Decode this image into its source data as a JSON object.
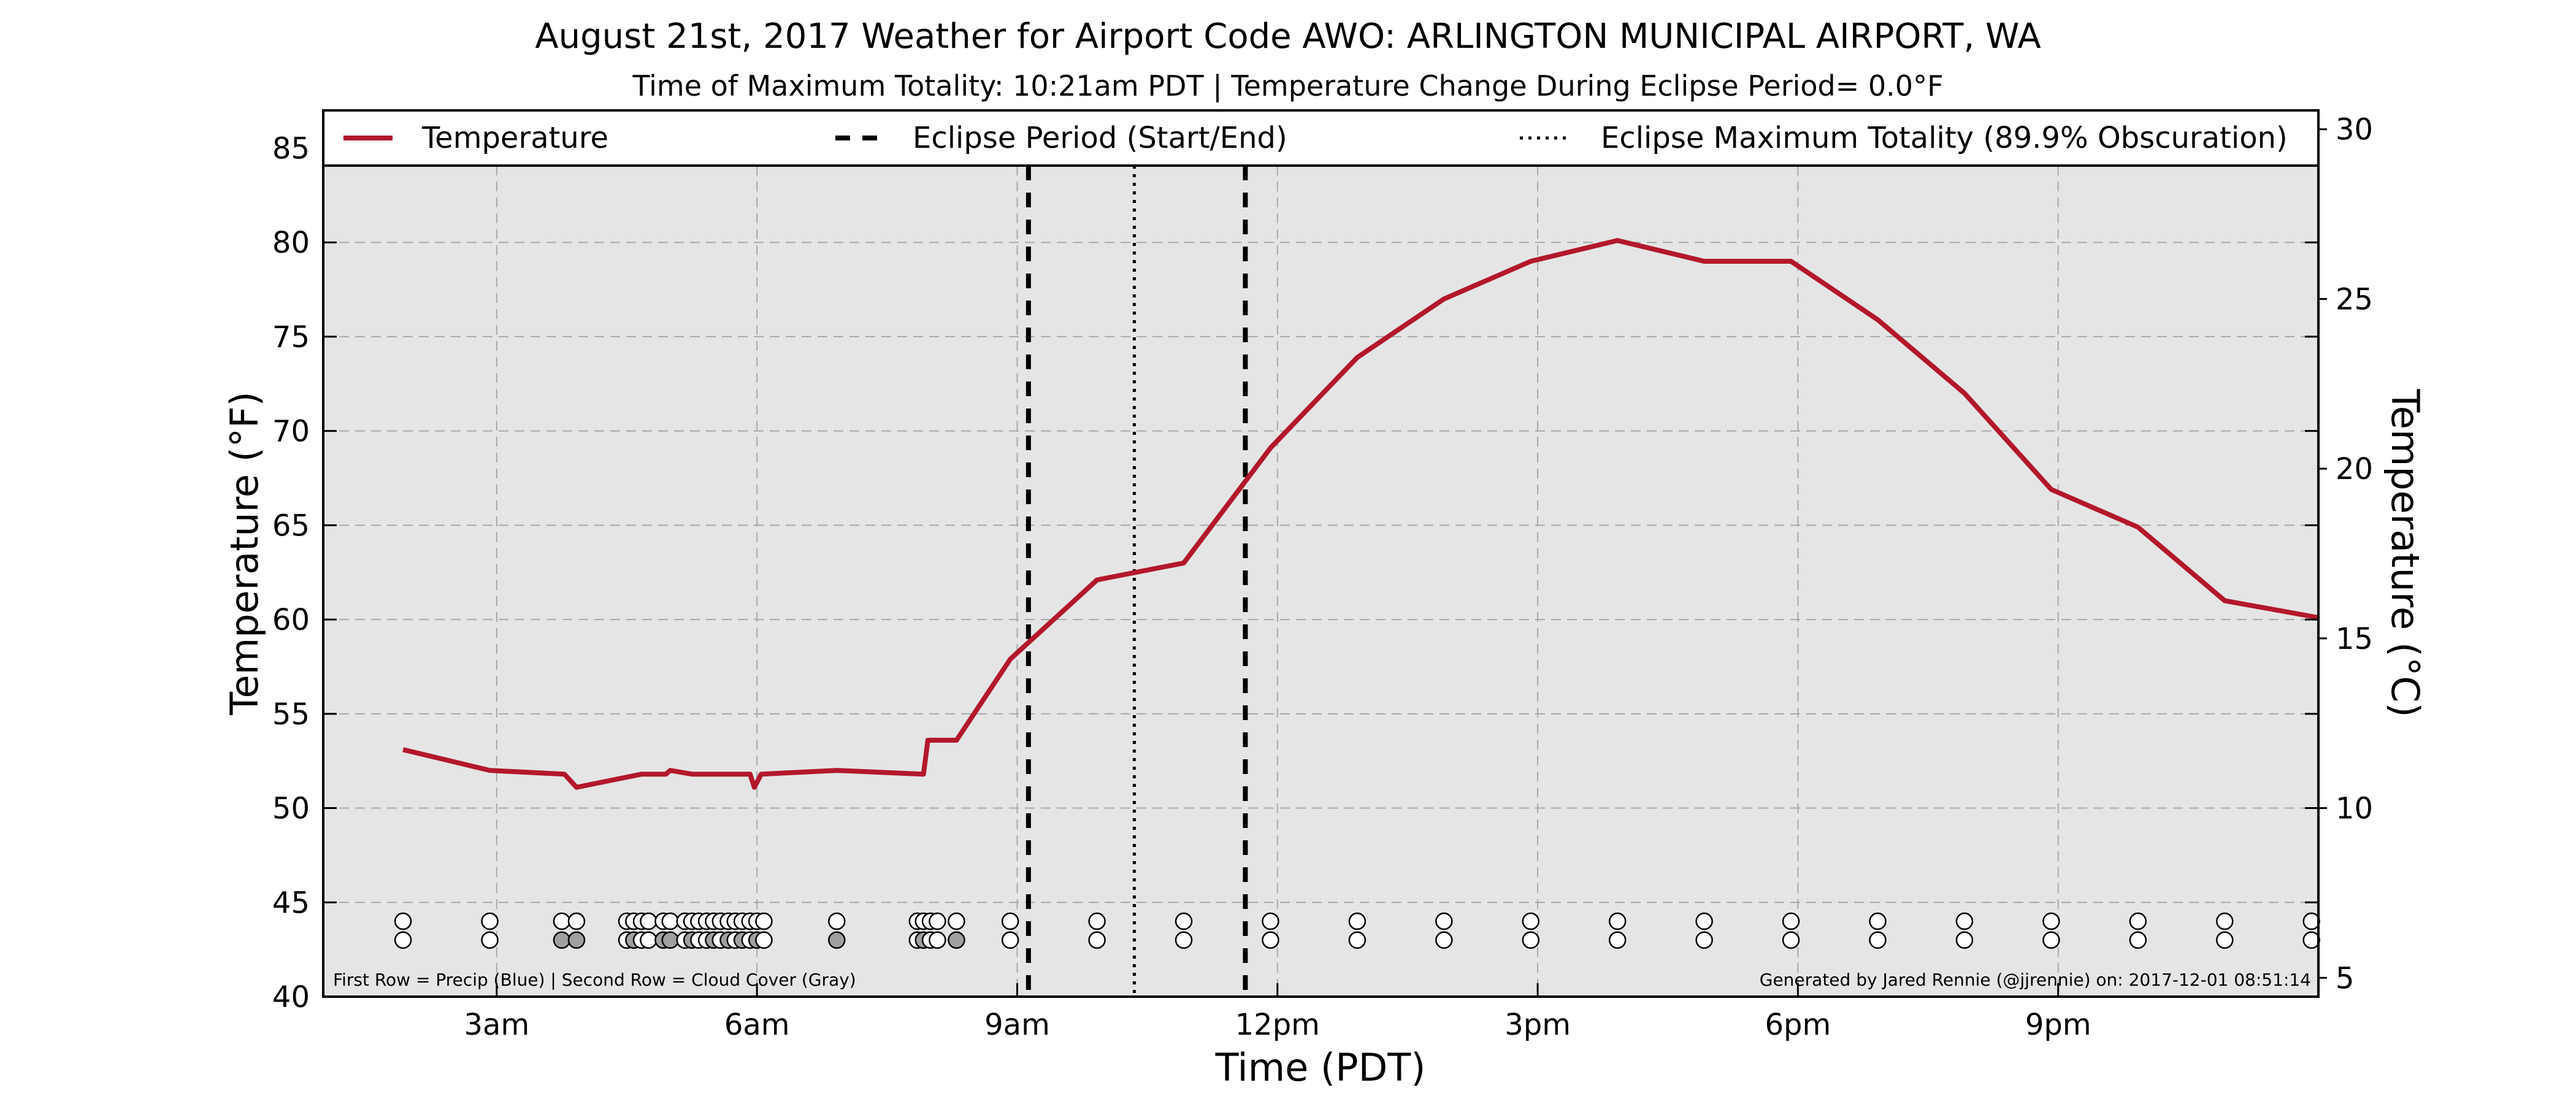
{
  "chart_data": {
    "type": "line",
    "title": "August 21st, 2017 Weather for Airport Code AWO: ARLINGTON MUNICIPAL AIRPORT, WA",
    "subtitle": "Time of Maximum Totality: 10:21am PDT | Temperature Change During Eclipse Period= 0.0°F",
    "xlabel": "Time (PDT)",
    "ylabel": "Temperature (°F)",
    "ylabel_right": "Temperature (°C)",
    "xlim": [
      1.0,
      24.0
    ],
    "ylim": [
      40,
      87
    ],
    "ylim_right_c": [
      4.444,
      30.556
    ],
    "x_ticks": [
      {
        "x": 3,
        "label": "3am"
      },
      {
        "x": 6,
        "label": "6am"
      },
      {
        "x": 9,
        "label": "9am"
      },
      {
        "x": 12,
        "label": "12pm"
      },
      {
        "x": 15,
        "label": "3pm"
      },
      {
        "x": 18,
        "label": "6pm"
      },
      {
        "x": 21,
        "label": "9pm"
      }
    ],
    "y_ticks": [
      40,
      45,
      50,
      55,
      60,
      65,
      70,
      75,
      80,
      85
    ],
    "y_ticks_right": [
      5,
      10,
      15,
      20,
      25,
      30
    ],
    "grid": true,
    "legend_placement": "top",
    "colors": {
      "temperature": "#b2182b",
      "eclipse": "#000000",
      "plot_bg": "#e5e5e5",
      "cloud_gray": "#a0a0a0"
    },
    "series": [
      {
        "name": "Temperature",
        "points": [
          [
            1.92,
            53.1
          ],
          [
            2.92,
            52.0
          ],
          [
            3.78,
            51.8
          ],
          [
            3.92,
            51.1
          ],
          [
            4.67,
            51.8
          ],
          [
            4.95,
            51.8
          ],
          [
            5.0,
            52.0
          ],
          [
            5.25,
            51.8
          ],
          [
            5.92,
            51.8
          ],
          [
            5.97,
            51.1
          ],
          [
            6.05,
            51.8
          ],
          [
            6.92,
            52.0
          ],
          [
            7.92,
            51.8
          ],
          [
            7.97,
            53.6
          ],
          [
            8.3,
            53.6
          ],
          [
            8.92,
            57.9
          ],
          [
            9.92,
            62.1
          ],
          [
            10.92,
            63.0
          ],
          [
            11.92,
            69.1
          ],
          [
            12.92,
            73.9
          ],
          [
            13.92,
            77.0
          ],
          [
            14.92,
            79.0
          ],
          [
            15.92,
            80.1
          ],
          [
            16.92,
            79.0
          ],
          [
            17.92,
            79.0
          ],
          [
            18.92,
            75.9
          ],
          [
            19.92,
            72.0
          ],
          [
            20.92,
            66.9
          ],
          [
            21.92,
            64.9
          ],
          [
            22.92,
            61.0
          ],
          [
            24.0,
            60.1
          ]
        ]
      }
    ],
    "vlines": [
      {
        "name": "Eclipse Period (Start/End)",
        "x": 9.13,
        "style": "dashed"
      },
      {
        "name": "Eclipse Period (Start/End)",
        "x": 11.63,
        "style": "dashed"
      },
      {
        "name": "Eclipse Maximum Totality (89.9% Obscuration)",
        "x": 10.35,
        "style": "dotted"
      }
    ],
    "legend": [
      {
        "label": "Temperature",
        "style": "solid"
      },
      {
        "label": "Eclipse Period (Start/End)",
        "style": "dashed"
      },
      {
        "label": "Eclipse Maximum Totality (89.9% Obscuration)",
        "style": "dotted"
      }
    ],
    "obs_rows": {
      "precip_y": 44,
      "cloud_y": 43,
      "times": [
        1.92,
        2.92,
        3.75,
        3.92,
        4.5,
        4.58,
        4.67,
        4.75,
        4.92,
        5.0,
        5.17,
        5.25,
        5.33,
        5.42,
        5.5,
        5.58,
        5.67,
        5.75,
        5.83,
        5.92,
        6.0,
        6.08,
        6.92,
        7.85,
        7.92,
        8.0,
        8.08,
        8.3,
        8.92,
        9.92,
        10.92,
        11.92,
        12.92,
        13.92,
        14.92,
        15.92,
        16.92,
        17.92,
        18.92,
        19.92,
        20.92,
        21.92,
        22.92,
        23.92
      ],
      "cloud_filled": [
        3.75,
        3.92,
        4.58,
        4.92,
        5.0,
        5.25,
        5.5,
        5.67,
        5.83,
        6.0,
        6.92,
        7.92,
        8.3
      ]
    },
    "annotations": {
      "left": "First Row = Precip (Blue) | Second Row = Cloud Cover (Gray)",
      "right": "Generated by Jared Rennie (@jjrennie) on: 2017-12-01 08:51:14"
    }
  }
}
